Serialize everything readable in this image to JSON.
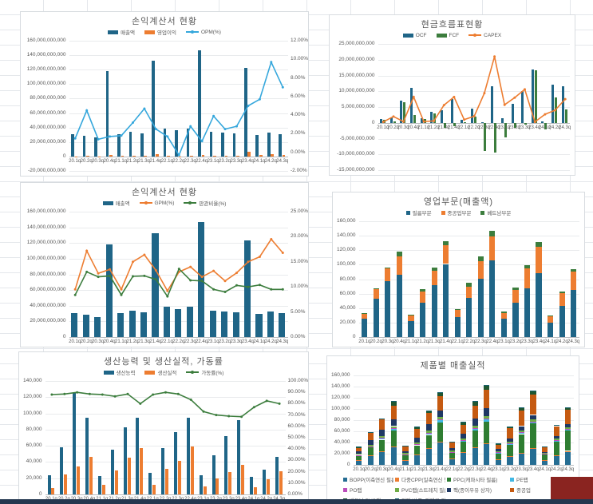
{
  "page": {
    "background_color": "#ffffff",
    "grid_line_color": "#e4e7eb",
    "taskbar_color": "#24374f",
    "red_panel_color": "#8a2420"
  },
  "chart_data": [
    {
      "type": "combo",
      "title": "손익계산서 현황",
      "legend_position": "top",
      "left_axis": {
        "min": -20000000000,
        "max": 160000000000,
        "step": 20000000000,
        "format": "num"
      },
      "right_axis": {
        "min": -2,
        "max": 12,
        "step": 2,
        "format": "pct"
      },
      "categories": [
        "20.1q",
        "20.2q",
        "20.3q",
        "20.4q",
        "21.1q",
        "21.2q",
        "21.3q",
        "21.4q",
        "22.1q",
        "22.2q",
        "22.3q",
        "22.4q",
        "23.1q",
        "23.2q",
        "23.3q",
        "23.4q",
        "24.1q",
        "24.2q",
        "24.3q"
      ],
      "series": [
        {
          "name": "매출액",
          "kind": "bar",
          "swatch": "bar",
          "axis": "left",
          "color": "#1F6587",
          "values": [
            31000000000,
            29000000000,
            26000000000,
            118000000000,
            31000000000,
            34000000000,
            31500000000,
            133000000000,
            39000000000,
            36000000000,
            38500000000,
            147000000000,
            34000000000,
            33000000000,
            32000000000,
            123000000000,
            30000000000,
            33000000000,
            31000000000
          ]
        },
        {
          "name": "영업이익",
          "kind": "bar",
          "swatch": "bar",
          "axis": "left",
          "color": "#ED7D31",
          "values": [
            470000000,
            1310000000,
            360000000,
            2010000000,
            560000000,
            1090000000,
            1480000000,
            3330000000,
            660000000,
            -110000000,
            1080000000,
            1760000000,
            1330000000,
            830000000,
            900000000,
            6150000000,
            1710000000,
            3200000000,
            2170000000
          ]
        },
        {
          "name": "OPM(%)",
          "kind": "line",
          "swatch": "line",
          "axis": "right",
          "color": "#35A7DC",
          "values": [
            1.5,
            4.5,
            1.4,
            1.7,
            1.8,
            3.2,
            4.7,
            2.5,
            1.7,
            -0.3,
            2.8,
            1.2,
            3.9,
            2.5,
            2.8,
            5.0,
            5.7,
            9.7,
            7.0
          ]
        }
      ]
    },
    {
      "type": "combo",
      "title": "현금흐름표현황",
      "legend_position": "top",
      "left_axis": {
        "min": -15000000000,
        "max": 25000000000,
        "step": 5000000000,
        "format": "num"
      },
      "categories": [
        "20.1q",
        "20.2q",
        "20.3q",
        "20.4q",
        "21.1q",
        "21.2q",
        "21.3q",
        "21.4q",
        "22.1q",
        "22.2q",
        "22.3q",
        "22.4q",
        "23.1q",
        "23.2q",
        "23.3q",
        "23.4q",
        "24.1q",
        "24.2q",
        "24.3q"
      ],
      "series": [
        {
          "name": "OCF",
          "kind": "bar",
          "swatch": "bar",
          "axis": "left",
          "color": "#1F6587",
          "values": [
            1200000000,
            1600000000,
            7000000000,
            11000000000,
            1500000000,
            3500000000,
            4000000000,
            7500000000,
            1000000000,
            4600000000,
            300000000,
            11700000000,
            1400000000,
            6000000000,
            10000000000,
            17000000000,
            500000000,
            12000000000,
            11500000000
          ]
        },
        {
          "name": "FCF",
          "kind": "bar",
          "swatch": "bar",
          "axis": "left",
          "color": "#3C7D3D",
          "values": [
            900000000,
            500000000,
            6500000000,
            2600000000,
            1200000000,
            3100000000,
            -1700000000,
            -1100000000,
            200000000,
            2100000000,
            -9000000000,
            -9400000000,
            -4600000000,
            -1600000000,
            -600000000,
            16700000000,
            -2100000000,
            8000000000,
            4300000000
          ]
        },
        {
          "name": "CAPEX",
          "kind": "line",
          "swatch": "line",
          "axis": "left",
          "color": "#ED7D31",
          "values": [
            300000000,
            2000000000,
            400000000,
            8200000000,
            400000000,
            600000000,
            5600000000,
            8200000000,
            1000000000,
            2100000000,
            9400000000,
            21000000000,
            5700000000,
            8000000000,
            10600000000,
            300000000,
            2700000000,
            4000000000,
            7500000000
          ]
        }
      ]
    },
    {
      "type": "combo",
      "title": "손익계산서 현황",
      "legend_position": "top",
      "left_axis": {
        "min": 0,
        "max": 160000000000,
        "step": 20000000000,
        "format": "num"
      },
      "right_axis": {
        "min": 0,
        "max": 25,
        "step": 5,
        "format": "pct"
      },
      "categories": [
        "20.1q",
        "20.2q",
        "20.3q",
        "20.4q",
        "21.1q",
        "21.2q",
        "21.3q",
        "21.4q",
        "22.1q",
        "22.2q",
        "22.3q",
        "22.4q",
        "23.1q",
        "23.2q",
        "23.3q",
        "23.4q",
        "24.1q",
        "24.2q",
        "24.3q"
      ],
      "series": [
        {
          "name": "매출액",
          "kind": "bar",
          "swatch": "bar",
          "axis": "left",
          "color": "#1F6587",
          "values": [
            31000000000,
            29000000000,
            26000000000,
            118000000000,
            31000000000,
            34000000000,
            31500000000,
            133000000000,
            39000000000,
            36000000000,
            38500000000,
            147000000000,
            34000000000,
            33000000000,
            32000000000,
            123000000000,
            30000000000,
            33000000000,
            31000000000
          ]
        },
        {
          "name": "GPM(%)",
          "kind": "line",
          "swatch": "line",
          "axis": "right",
          "color": "#ED7D31",
          "values": [
            9.5,
            17.2,
            12.7,
            13.5,
            9.5,
            15.0,
            16.4,
            13.3,
            9.2,
            13.0,
            14.0,
            12.0,
            13.2,
            11.2,
            12.8,
            15.0,
            16.0,
            19.5,
            16.8
          ]
        },
        {
          "name": "판관비율(%)",
          "kind": "line",
          "swatch": "line",
          "axis": "right",
          "color": "#3C7D3D",
          "values": [
            8.4,
            13.0,
            12.0,
            12.2,
            8.4,
            12.1,
            12.2,
            11.5,
            8.1,
            13.6,
            11.3,
            11.2,
            9.5,
            9.0,
            10.3,
            10.0,
            10.4,
            9.5,
            9.5
          ]
        }
      ]
    },
    {
      "type": "stacked-bar",
      "title": "영업부문(매출액)",
      "legend_position": "top",
      "stacked": true,
      "left_axis": {
        "min": 0,
        "max": 160000,
        "step": 20000,
        "format": "num"
      },
      "categories": [
        "20.1q",
        "20.2q",
        "20.3q",
        "20.4q",
        "21.1q",
        "21.2q",
        "21.3q",
        "21.4q",
        "22.1q",
        "22.2q",
        "22.3q",
        "22.4q",
        "23.1q",
        "23.2q",
        "23.3q",
        "23.4q",
        "24.1q",
        "24.2q",
        "24.3q"
      ],
      "series": [
        {
          "name": "필름부문",
          "kind": "bar",
          "swatch": "square",
          "axis": "left",
          "color": "#1F6587",
          "values": [
            25000,
            53000,
            77000,
            86000,
            22000,
            47000,
            72000,
            101000,
            28000,
            54000,
            81000,
            106000,
            25000,
            47000,
            67000,
            88000,
            20000,
            43000,
            65000
          ]
        },
        {
          "name": "중공업부문",
          "kind": "bar",
          "swatch": "square",
          "axis": "left",
          "color": "#ED7D31",
          "values": [
            7000,
            13000,
            18000,
            25000,
            8000,
            16000,
            20000,
            26000,
            10000,
            16000,
            24000,
            33000,
            8000,
            18000,
            28000,
            37000,
            9000,
            18000,
            25000
          ]
        },
        {
          "name": "베트남부문",
          "kind": "bar",
          "swatch": "square",
          "axis": "left",
          "color": "#3C7D3D",
          "values": [
            1000,
            1000,
            1000,
            7000,
            1000,
            3000,
            4000,
            6000,
            1000,
            5000,
            7000,
            8000,
            2000,
            3000,
            4000,
            6000,
            1000,
            2000,
            4000
          ]
        }
      ]
    },
    {
      "type": "combo",
      "title": "생산능력 및 생산실적, 가동률",
      "legend_position": "top",
      "left_axis": {
        "min": 0,
        "max": 140000,
        "step": 20000,
        "format": "num"
      },
      "right_axis": {
        "min": 0,
        "max": 100,
        "step": 10,
        "format": "pct"
      },
      "categories": [
        "20.1q",
        "20.2q",
        "20.3q",
        "20.4q",
        "21.1q",
        "21.2q",
        "21.3q",
        "21.4q",
        "22.1q",
        "22.2q",
        "22.3q",
        "22.4q",
        "23.1q",
        "23.2q",
        "23.3q",
        "23.4q",
        "24.1q",
        "24.2q",
        "24.3q"
      ],
      "series": [
        {
          "name": "생산능력",
          "kind": "bar",
          "swatch": "bar",
          "axis": "left",
          "color": "#1F6587",
          "values": [
            24000,
            58000,
            125000,
            95000,
            23000,
            55000,
            83000,
            95000,
            27000,
            57000,
            77000,
            95000,
            24000,
            48000,
            72000,
            92000,
            22000,
            31000,
            46000
          ]
        },
        {
          "name": "생산실적",
          "kind": "bar",
          "swatch": "bar",
          "axis": "left",
          "color": "#ED7D31",
          "values": [
            8000,
            25000,
            35000,
            46000,
            12000,
            30000,
            45000,
            57000,
            12000,
            32000,
            41000,
            59000,
            10000,
            20000,
            28000,
            37000,
            9000,
            19000,
            29000
          ]
        },
        {
          "name": "가동률(%)",
          "kind": "line",
          "swatch": "line",
          "axis": "right",
          "color": "#3C7D3D",
          "values": [
            88,
            88.5,
            90,
            88.5,
            88,
            86.5,
            88.5,
            80,
            88,
            90,
            88.5,
            83.5,
            73,
            70,
            69,
            68.5,
            77,
            82.5,
            80
          ]
        }
      ]
    },
    {
      "type": "stacked-bar",
      "title": "제품별 매출실적",
      "legend_position": "bottom",
      "stacked": true,
      "left_axis": {
        "min": 0,
        "max": 160000,
        "step": 20000,
        "format": "num"
      },
      "categories": [
        "20.1q",
        "20.2q",
        "20.3q",
        "20.4q",
        "21.1q",
        "21.2q",
        "21.3q",
        "21.4q",
        "22.1q",
        "22.2q",
        "22.3q",
        "22.4q",
        "23.1q",
        "23.2q",
        "23.3q",
        "23.4q",
        "24.1q",
        "24.2q",
        "24.3q"
      ],
      "series": [
        {
          "name": "BOPP(이축연신 필름)",
          "kind": "bar",
          "swatch": "square",
          "axis": "left",
          "color": "#256D93",
          "values": [
            8000,
            16000,
            23000,
            31000,
            8000,
            18000,
            28000,
            40000,
            10000,
            22000,
            30000,
            37000,
            9000,
            15000,
            21000,
            29000,
            8000,
            16000,
            24000
          ]
        },
        {
          "name": "다중CPP(일축연신 필름)",
          "kind": "bar",
          "swatch": "square",
          "axis": "left",
          "color": "#ED7D31",
          "values": [
            1000,
            1000,
            2000,
            2000,
            1000,
            1000,
            1500,
            2000,
            1000,
            1000,
            2000,
            2000,
            1000,
            1000,
            1000,
            1000,
            500,
            1000,
            1000
          ]
        },
        {
          "name": "PPC(캐파시타 필름)",
          "kind": "bar",
          "swatch": "square",
          "axis": "left",
          "color": "#2E7D32",
          "values": [
            7000,
            14000,
            20000,
            28000,
            8000,
            16000,
            24000,
            34000,
            10000,
            18000,
            30000,
            38000,
            10000,
            20000,
            33000,
            44000,
            10000,
            25000,
            37000
          ]
        },
        {
          "name": "PE랩",
          "kind": "bar",
          "swatch": "square",
          "axis": "left",
          "color": "#41B8E4",
          "values": [
            1500,
            2000,
            3000,
            4000,
            1500,
            2000,
            3000,
            5000,
            2000,
            3000,
            4000,
            6000,
            2000,
            2000,
            3000,
            3000,
            1000,
            2000,
            2000
          ]
        },
        {
          "name": "PO랩",
          "kind": "bar",
          "swatch": "square",
          "axis": "left",
          "color": "#BB4DBB",
          "values": [
            300,
            300,
            300,
            300,
            300,
            300,
            300,
            300,
            300,
            300,
            300,
            300,
            300,
            300,
            300,
            300,
            200,
            300,
            300
          ]
        },
        {
          "name": "PVC랩(스트레치 필름)",
          "kind": "bar",
          "swatch": "square",
          "axis": "left",
          "color": "#70AD47",
          "values": [
            2000,
            3000,
            3000,
            4000,
            2000,
            3000,
            4000,
            4000,
            2000,
            3000,
            4000,
            4000,
            2000,
            3000,
            3000,
            4000,
            1500,
            3000,
            3000
          ]
        },
        {
          "name": "팩(종이우유 상자)",
          "kind": "bar",
          "swatch": "square",
          "axis": "left",
          "color": "#1F3864",
          "values": [
            4000,
            8000,
            12000,
            12000,
            4000,
            8000,
            12000,
            12000,
            5000,
            8000,
            12000,
            14000,
            4000,
            6000,
            8000,
            8000,
            2000,
            4000,
            6000
          ]
        },
        {
          "name": "중공업",
          "kind": "bar",
          "swatch": "square",
          "axis": "left",
          "color": "#C55A11",
          "values": [
            7000,
            13000,
            18000,
            25000,
            8000,
            16000,
            20000,
            26000,
            10000,
            16000,
            24000,
            33000,
            8000,
            18000,
            28000,
            37000,
            9000,
            18000,
            25000
          ]
        },
        {
          "name": "베트남 PVC랩",
          "kind": "bar",
          "swatch": "square",
          "axis": "left",
          "color": "#1E5631",
          "values": [
            1000,
            1000,
            1000,
            7000,
            1000,
            3000,
            4000,
            6000,
            1000,
            5000,
            7000,
            8000,
            2000,
            3000,
            4000,
            6000,
            1000,
            2000,
            4000
          ]
        },
        {
          "name": "기타(상품, 임대료 외)",
          "kind": "bar",
          "swatch": "square",
          "axis": "left",
          "color": "#17616E",
          "values": [
            500,
            700,
            1000,
            1000,
            500,
            700,
            1000,
            1000,
            500,
            700,
            1000,
            1000,
            500,
            700,
            1000,
            1000,
            300,
            700,
            1000
          ]
        }
      ]
    }
  ]
}
